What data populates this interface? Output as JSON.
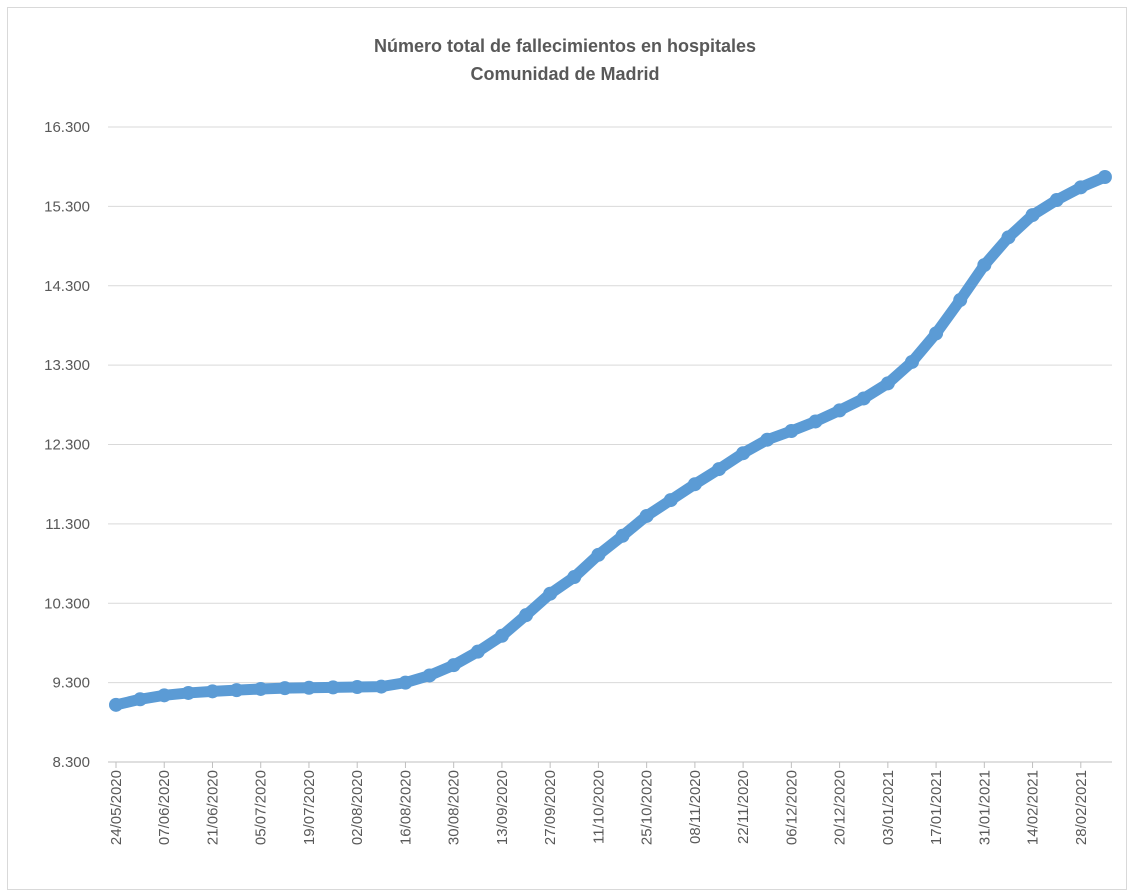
{
  "chart_data": {
    "type": "scatter",
    "title": "Número total de fallecimientos en hospitales",
    "subtitle": "Comunidad de Madrid",
    "categories": [
      "24/05/2020",
      null,
      "07/06/2020",
      null,
      "21/06/2020",
      null,
      "05/07/2020",
      null,
      "19/07/2020",
      null,
      "02/08/2020",
      null,
      "16/08/2020",
      null,
      "30/08/2020",
      null,
      "13/09/2020",
      null,
      "27/09/2020",
      null,
      "11/10/2020",
      null,
      "25/10/2020",
      null,
      "08/11/2020",
      null,
      "22/11/2020",
      null,
      "06/12/2020",
      null,
      "20/12/2020",
      null,
      "03/01/2021",
      null,
      "17/01/2021",
      null,
      "31/01/2021",
      null,
      "14/02/2021",
      null,
      "28/02/2021",
      null
    ],
    "values": [
      9020,
      9090,
      9140,
      9170,
      9190,
      9205,
      9220,
      9230,
      9235,
      9240,
      9245,
      9250,
      9300,
      9390,
      9520,
      9690,
      9890,
      10150,
      10420,
      10630,
      10910,
      11150,
      11400,
      11600,
      11800,
      11990,
      12190,
      12360,
      12470,
      12590,
      12730,
      12880,
      13070,
      13340,
      13700,
      14120,
      14560,
      14910,
      15190,
      15380,
      15540,
      15670
    ],
    "color": "#5b9bd5",
    "ylim": [
      8300,
      16300
    ],
    "yticks": [
      {
        "value": 8300,
        "label": "8.300"
      },
      {
        "value": 9300,
        "label": "9.300"
      },
      {
        "value": 10300,
        "label": "10.300"
      },
      {
        "value": 11300,
        "label": "11.300"
      },
      {
        "value": 12300,
        "label": "12.300"
      },
      {
        "value": 13300,
        "label": "13.300"
      },
      {
        "value": 14300,
        "label": "14.300"
      },
      {
        "value": 15300,
        "label": "15.300"
      },
      {
        "value": 16300,
        "label": "16.300"
      }
    ],
    "grid": true
  }
}
